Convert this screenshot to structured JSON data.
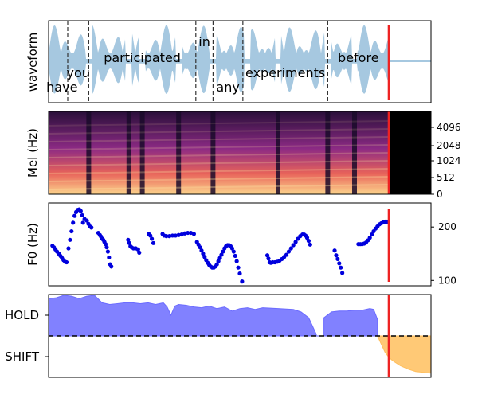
{
  "colors": {
    "waveform": "#a6c8e0",
    "marker": "#ee2222",
    "word_boundary": "#333333",
    "f0_points": "#0000dd",
    "hold_fill": "#6b6bff",
    "shift_fill": "#ffbf5e",
    "axis": "#000000"
  },
  "chart_data": [
    {
      "type": "area",
      "panel": "waveform",
      "ylabel": "waveform",
      "x_range": [
        0,
        1
      ],
      "words": [
        {
          "text": "have",
          "start": 0.02,
          "end": 0.05
        },
        {
          "text": "you",
          "start": 0.05,
          "end": 0.105
        },
        {
          "text": "participated",
          "start": 0.105,
          "end": 0.385
        },
        {
          "text": "in",
          "start": 0.385,
          "end": 0.43
        },
        {
          "text": "any",
          "start": 0.43,
          "end": 0.508
        },
        {
          "text": "experiments",
          "start": 0.508,
          "end": 0.73
        },
        {
          "text": "before",
          "start": 0.73,
          "end": 0.89
        }
      ],
      "boundaries": [
        0.05,
        0.105,
        0.385,
        0.43,
        0.508,
        0.73
      ],
      "marker_x": 0.89
    },
    {
      "type": "heatmap",
      "panel": "mel",
      "ylabel": "Mel (Hz)",
      "yticks": [
        "4096",
        "2048",
        "1024",
        "512",
        "0"
      ],
      "active_until": 0.89,
      "marker_x": 0.89
    },
    {
      "type": "scatter",
      "panel": "f0",
      "ylabel": "F0 (Hz)",
      "ylim": [
        90,
        245
      ],
      "yticks": [
        "200",
        "100"
      ],
      "points": [
        [
          0.01,
          165
        ],
        [
          0.014,
          162
        ],
        [
          0.018,
          158
        ],
        [
          0.022,
          154
        ],
        [
          0.027,
          150
        ],
        [
          0.031,
          146
        ],
        [
          0.035,
          142
        ],
        [
          0.039,
          138
        ],
        [
          0.043,
          135
        ],
        [
          0.047,
          134
        ],
        [
          0.052,
          160
        ],
        [
          0.056,
          176
        ],
        [
          0.06,
          192
        ],
        [
          0.064,
          208
        ],
        [
          0.068,
          221
        ],
        [
          0.072,
          228
        ],
        [
          0.076,
          232
        ],
        [
          0.08,
          233
        ],
        [
          0.084,
          230
        ],
        [
          0.088,
          222
        ],
        [
          0.09,
          208
        ],
        [
          0.094,
          215
        ],
        [
          0.1,
          212
        ],
        [
          0.104,
          206
        ],
        [
          0.108,
          201
        ],
        [
          0.112,
          199
        ],
        [
          0.13,
          189
        ],
        [
          0.134,
          185
        ],
        [
          0.137,
          182
        ],
        [
          0.14,
          178
        ],
        [
          0.143,
          176
        ],
        [
          0.146,
          172
        ],
        [
          0.149,
          168
        ],
        [
          0.152,
          162
        ],
        [
          0.155,
          154
        ],
        [
          0.158,
          143
        ],
        [
          0.161,
          130
        ],
        [
          0.164,
          126
        ],
        [
          0.208,
          176
        ],
        [
          0.211,
          170
        ],
        [
          0.214,
          164
        ],
        [
          0.217,
          162
        ],
        [
          0.222,
          160
        ],
        [
          0.228,
          160
        ],
        [
          0.234,
          158
        ],
        [
          0.237,
          152
        ],
        [
          0.262,
          187
        ],
        [
          0.266,
          184
        ],
        [
          0.27,
          178
        ],
        [
          0.274,
          170
        ],
        [
          0.298,
          187
        ],
        [
          0.302,
          184
        ],
        [
          0.308,
          183
        ],
        [
          0.316,
          183
        ],
        [
          0.324,
          184
        ],
        [
          0.332,
          184
        ],
        [
          0.34,
          185
        ],
        [
          0.348,
          186
        ],
        [
          0.356,
          188
        ],
        [
          0.364,
          189
        ],
        [
          0.372,
          189
        ],
        [
          0.38,
          187
        ],
        [
          0.388,
          172
        ],
        [
          0.392,
          167
        ],
        [
          0.396,
          162
        ],
        [
          0.4,
          156
        ],
        [
          0.404,
          150
        ],
        [
          0.408,
          144
        ],
        [
          0.412,
          138
        ],
        [
          0.416,
          133
        ],
        [
          0.42,
          129
        ],
        [
          0.424,
          126
        ],
        [
          0.428,
          124
        ],
        [
          0.432,
          124
        ],
        [
          0.436,
          126
        ],
        [
          0.44,
          130
        ],
        [
          0.444,
          136
        ],
        [
          0.448,
          142
        ],
        [
          0.452,
          148
        ],
        [
          0.456,
          154
        ],
        [
          0.46,
          160
        ],
        [
          0.464,
          164
        ],
        [
          0.468,
          166
        ],
        [
          0.472,
          166
        ],
        [
          0.476,
          164
        ],
        [
          0.48,
          160
        ],
        [
          0.484,
          154
        ],
        [
          0.488,
          146
        ],
        [
          0.492,
          136
        ],
        [
          0.496,
          124
        ],
        [
          0.5,
          113
        ],
        [
          0.506,
          98
        ],
        [
          0.572,
          147
        ],
        [
          0.575,
          141
        ],
        [
          0.578,
          134
        ],
        [
          0.581,
          133
        ],
        [
          0.586,
          134
        ],
        [
          0.592,
          134
        ],
        [
          0.598,
          135
        ],
        [
          0.604,
          137
        ],
        [
          0.61,
          140
        ],
        [
          0.616,
          144
        ],
        [
          0.622,
          148
        ],
        [
          0.628,
          154
        ],
        [
          0.634,
          160
        ],
        [
          0.64,
          166
        ],
        [
          0.646,
          172
        ],
        [
          0.652,
          178
        ],
        [
          0.658,
          183
        ],
        [
          0.664,
          186
        ],
        [
          0.668,
          186
        ],
        [
          0.672,
          184
        ],
        [
          0.676,
          180
        ],
        [
          0.68,
          174
        ],
        [
          0.684,
          167
        ],
        [
          0.748,
          156
        ],
        [
          0.752,
          147
        ],
        [
          0.756,
          140
        ],
        [
          0.76,
          132
        ],
        [
          0.764,
          124
        ],
        [
          0.768,
          114
        ],
        [
          0.81,
          168
        ],
        [
          0.815,
          168
        ],
        [
          0.82,
          168
        ],
        [
          0.825,
          169
        ],
        [
          0.83,
          171
        ],
        [
          0.835,
          175
        ],
        [
          0.84,
          180
        ],
        [
          0.845,
          186
        ],
        [
          0.85,
          192
        ],
        [
          0.855,
          197
        ],
        [
          0.86,
          201
        ],
        [
          0.865,
          205
        ],
        [
          0.87,
          207
        ],
        [
          0.875,
          209
        ],
        [
          0.88,
          210
        ],
        [
          0.885,
          210
        ]
      ],
      "marker_x": 0.89
    },
    {
      "type": "area",
      "panel": "turn",
      "yticks": [
        "HOLD",
        "SHIFT"
      ],
      "ylim": [
        0,
        1
      ],
      "threshold": 0.5,
      "series": [
        {
          "role": "hold",
          "x": [
            0,
            0.02,
            0.04,
            0.06,
            0.08,
            0.1,
            0.12,
            0.14,
            0.16,
            0.18,
            0.2,
            0.22,
            0.24,
            0.26,
            0.28,
            0.3,
            0.31,
            0.32,
            0.33,
            0.34,
            0.36,
            0.38,
            0.4,
            0.42,
            0.44,
            0.46,
            0.48,
            0.5,
            0.52,
            0.54,
            0.56,
            0.6,
            0.64,
            0.66,
            0.68,
            0.7,
            0.7,
            0.72,
            0.72,
            0.74,
            0.76,
            0.78,
            0.8,
            0.82,
            0.84,
            0.85,
            0.86,
            0.86
          ],
          "values": [
            0.95,
            0.96,
            0.99,
            0.98,
            0.95,
            0.98,
            0.99,
            0.9,
            0.88,
            0.89,
            0.9,
            0.9,
            0.89,
            0.9,
            0.88,
            0.9,
            0.85,
            0.75,
            0.86,
            0.88,
            0.87,
            0.85,
            0.84,
            0.86,
            0.83,
            0.85,
            0.8,
            0.83,
            0.84,
            0.82,
            0.84,
            0.83,
            0.82,
            0.79,
            0.72,
            0.52,
            0.5,
            0.5,
            0.72,
            0.79,
            0.8,
            0.8,
            0.81,
            0.81,
            0.83,
            0.82,
            0.7,
            0.5
          ]
        },
        {
          "role": "shift",
          "x": [
            0.86,
            0.87,
            0.88,
            0.89,
            0.9,
            0.92,
            0.94,
            0.96,
            0.98,
            1.0
          ],
          "values": [
            0.5,
            0.4,
            0.3,
            0.24,
            0.2,
            0.14,
            0.1,
            0.07,
            0.06,
            0.05
          ]
        }
      ],
      "marker_x": 0.89
    }
  ]
}
